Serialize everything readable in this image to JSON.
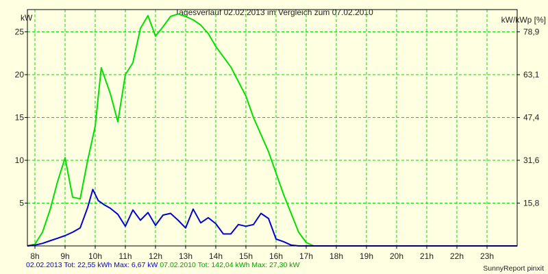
{
  "chart_data": {
    "type": "line",
    "title": "Tagesverlauf 02.02.2013 im Vergleich zum 07.02.2010",
    "ylabel_left": "kW",
    "ylabel_right": "kW/kWp [%]",
    "xlabel": "",
    "x_ticks": [
      "8h",
      "9h",
      "10h",
      "11h",
      "12h",
      "13h",
      "14h",
      "15h",
      "16h",
      "17h",
      "18h",
      "19h",
      "20h",
      "21h",
      "22h",
      "23h"
    ],
    "xlim": [
      7.75,
      24
    ],
    "ylim": [
      0,
      27.6
    ],
    "y_ticks_left": [
      5,
      10,
      15,
      20,
      25
    ],
    "y_ticks_right": [
      "15,8",
      "31,6",
      "47,4",
      "63,1",
      "78,9"
    ],
    "grid": true,
    "series": [
      {
        "name": "07.02.2010",
        "color": "#00e000",
        "x": [
          7.75,
          8.0,
          8.25,
          8.5,
          8.75,
          9.0,
          9.25,
          9.5,
          9.75,
          10.0,
          10.2,
          10.5,
          10.75,
          11.0,
          11.25,
          11.5,
          11.75,
          12.0,
          12.25,
          12.5,
          12.75,
          13.0,
          13.25,
          13.5,
          13.75,
          14.0,
          14.25,
          14.5,
          14.75,
          15.0,
          15.25,
          15.5,
          15.75,
          16.0,
          16.25,
          16.5,
          16.75,
          17.0,
          17.25,
          24.0
        ],
        "values": [
          0,
          0.2,
          1.6,
          4.2,
          7.5,
          10.3,
          5.7,
          5.5,
          10.0,
          14.0,
          20.8,
          17.8,
          14.5,
          20.0,
          21.4,
          25.4,
          26.9,
          24.5,
          25.6,
          26.8,
          27.1,
          26.8,
          26.4,
          25.8,
          24.8,
          23.3,
          22.1,
          20.9,
          19.2,
          17.5,
          15.0,
          13.0,
          11.0,
          8.5,
          6.0,
          3.8,
          1.6,
          0.4,
          0,
          0
        ]
      },
      {
        "name": "02.02.2013",
        "color": "#0000d8",
        "x": [
          7.75,
          8.0,
          8.25,
          8.5,
          8.75,
          9.0,
          9.25,
          9.5,
          9.75,
          9.92,
          10.1,
          10.3,
          10.5,
          10.75,
          11.0,
          11.25,
          11.5,
          11.75,
          12.0,
          12.25,
          12.5,
          12.75,
          13.0,
          13.25,
          13.5,
          13.75,
          14.0,
          14.25,
          14.5,
          14.75,
          15.0,
          15.25,
          15.5,
          15.75,
          16.0,
          16.25,
          16.5,
          16.75,
          24.0
        ],
        "values": [
          0,
          0.1,
          0.3,
          0.6,
          0.9,
          1.2,
          1.6,
          2.1,
          4.5,
          6.6,
          5.3,
          4.8,
          4.4,
          3.7,
          2.3,
          4.2,
          3.0,
          3.9,
          2.4,
          3.6,
          3.8,
          3.0,
          2.1,
          4.3,
          2.7,
          3.3,
          2.6,
          1.4,
          1.4,
          2.5,
          2.3,
          2.5,
          3.8,
          3.2,
          0.8,
          0.5,
          0.1,
          0,
          0
        ]
      }
    ]
  },
  "footer": {
    "series_2013": "02.02.2013 Tot: 22,55 kWh Max: 6,67 kW",
    "series_2010": "07.02.2010 Tot: 142,04 kWh Max: 27,30 kW",
    "brand": "SunnyReport pinxit"
  },
  "colors": {
    "grid": "#00dd00",
    "axis": "#000000",
    "text_2013": "#0000d8",
    "text_2010": "#00a000"
  }
}
